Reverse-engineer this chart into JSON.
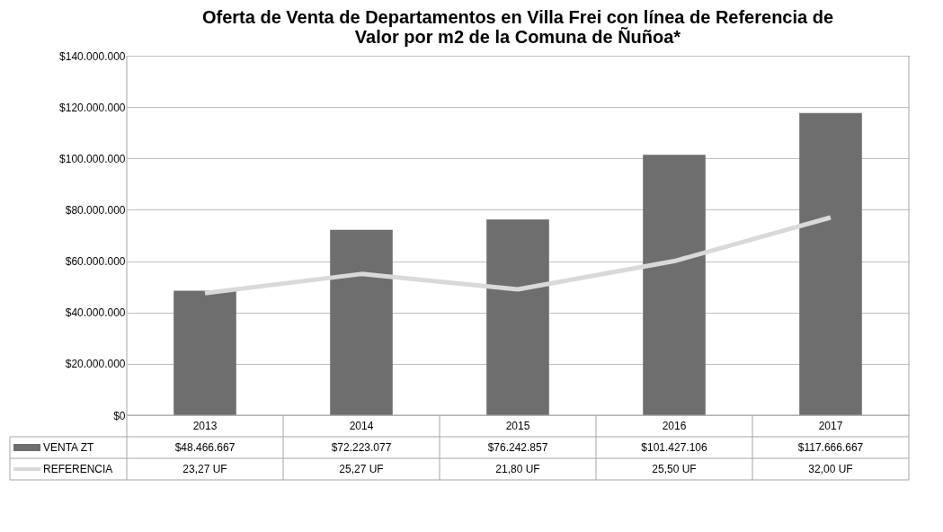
{
  "chart_data": {
    "type": "bar",
    "title": "Oferta de Venta de Departamentos en Villa Frei con línea de Referencia de Valor por m2 de la Comuna de Ñuñoa*",
    "categories": [
      "2013",
      "2014",
      "2015",
      "2016",
      "2017"
    ],
    "series": [
      {
        "name": "VENTA ZT",
        "color": "#6e6e6e",
        "values": [
          48466667,
          72223077,
          76242857,
          101427106,
          117666667
        ],
        "value_labels": [
          "$48.466.667",
          "$72.223.077",
          "$76.242.857",
          "$101.427.106",
          "$117.666.667"
        ]
      },
      {
        "name": "REFERENCIA",
        "type": "line",
        "color": "#d9d9d9",
        "values": [
          47500000,
          55000000,
          49000000,
          60000000,
          77000000
        ]
      }
    ],
    "annotations": [
      "23,27 UF",
      "25,27 UF",
      "21,80 UF",
      "25,50 UF",
      "32,00 UF"
    ],
    "ylim": [
      0,
      140000000
    ],
    "yticks": [
      {
        "value": 0,
        "label": "$0"
      },
      {
        "value": 20000000,
        "label": "$20.000.000"
      },
      {
        "value": 40000000,
        "label": "$40.000.000"
      },
      {
        "value": 60000000,
        "label": "$60.000.000"
      },
      {
        "value": 80000000,
        "label": "$80.000.000"
      },
      {
        "value": 100000000,
        "label": "$100.000.000"
      },
      {
        "value": 120000000,
        "label": "$120.000.000"
      },
      {
        "value": 140000000,
        "label": "$140.000.000"
      }
    ],
    "grid": "y",
    "legend": "bottom",
    "marker": "none"
  }
}
